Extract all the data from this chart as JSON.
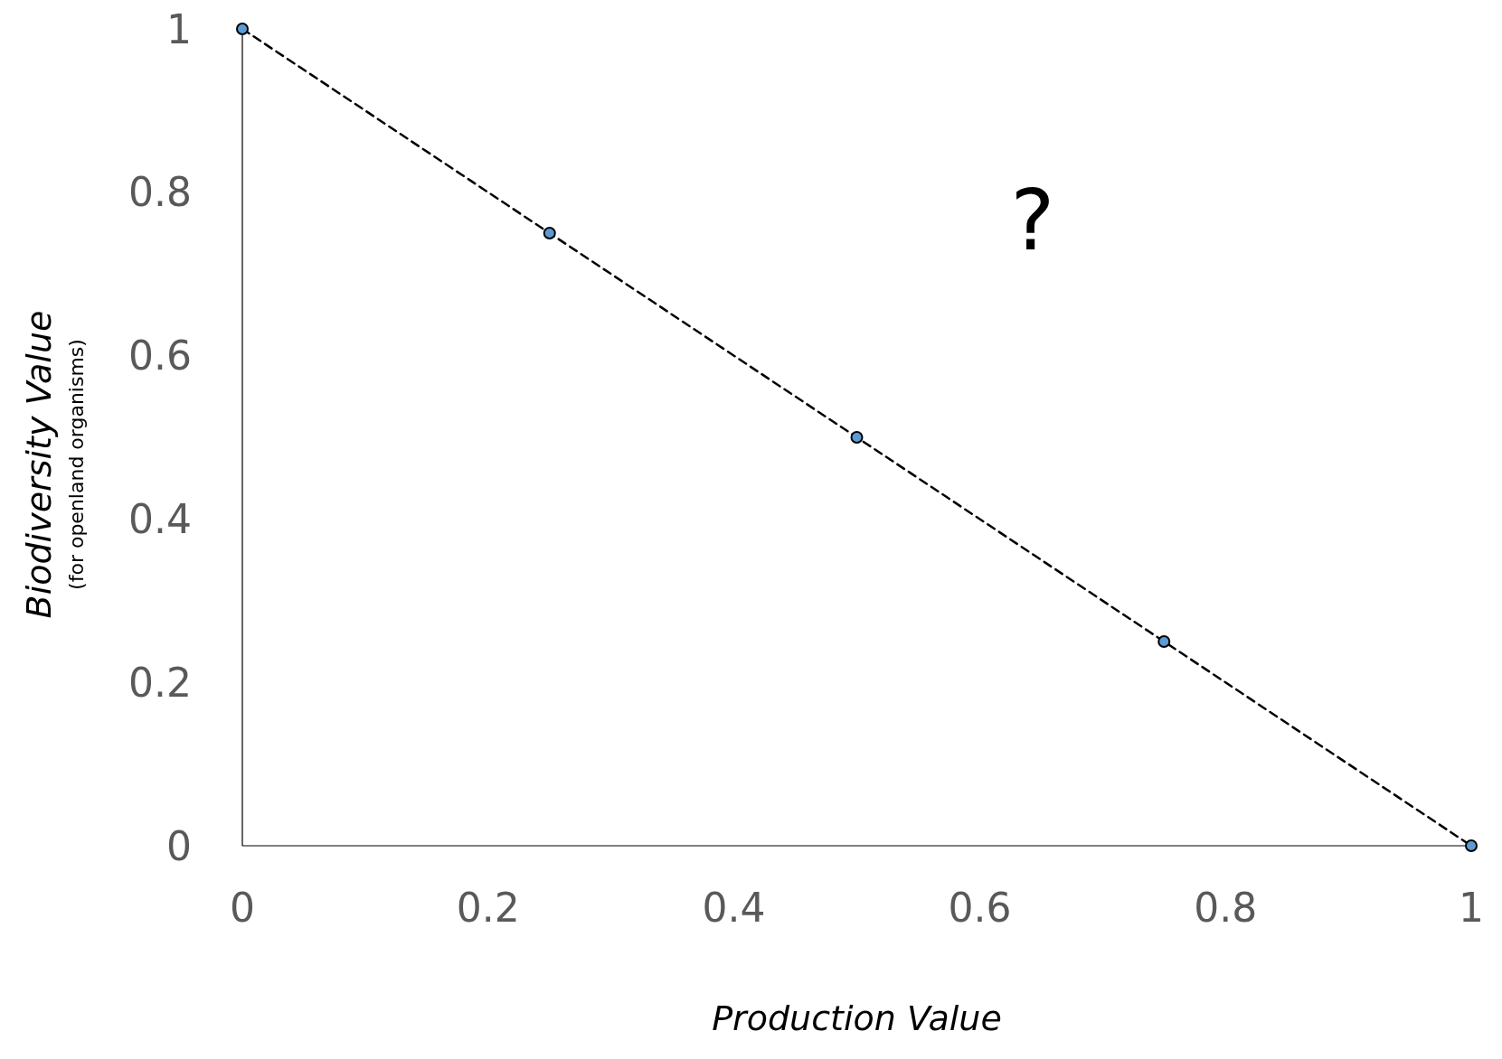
{
  "chart_data": {
    "type": "line",
    "x": [
      0,
      0.25,
      0.5,
      0.75,
      1
    ],
    "series": [
      {
        "color": "#000000",
        "values": [
          1,
          0.75,
          0.5,
          0.25,
          0
        ]
      }
    ],
    "marker": "circle",
    "line_style": "dashed",
    "xlim": [
      0,
      1
    ],
    "xticks": [
      0,
      0.2,
      0.4,
      0.6,
      0.8,
      1
    ],
    "ylim": [
      0,
      1
    ],
    "yticks": [
      0,
      0.2,
      0.4,
      0.6,
      0.8,
      1
    ],
    "xlabel": "Production Value",
    "ylabel": "Biodiversity Value",
    "annotations": [
      "(for openland organisms)",
      "?"
    ],
    "grid": false
  }
}
